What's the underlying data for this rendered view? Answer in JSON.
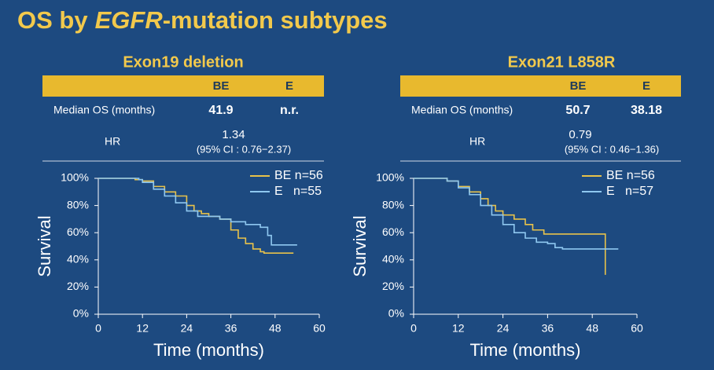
{
  "title": [
    "OS by",
    "EGFR",
    "-mutation subtypes"
  ],
  "chart_data": [
    {
      "type": "line",
      "title": "Exon19 deletion",
      "table": {
        "columns": [
          "BE",
          "E"
        ],
        "median_label": "Median OS (months)",
        "median": [
          41.9,
          "n.r."
        ],
        "hr_label": "HR",
        "hr": 1.34,
        "hr_ci": "(95% CI : 0.76−2.37)"
      },
      "xlabel": "Time (months)",
      "ylabel": "Survival",
      "xlim": [
        0,
        60
      ],
      "xticks": [
        0,
        12,
        24,
        36,
        48,
        60
      ],
      "ylim": [
        0,
        100
      ],
      "yticks": [
        {
          "value": 0,
          "label": "0%"
        },
        {
          "value": 20,
          "label": "20%"
        },
        {
          "value": 40,
          "label": "40%"
        },
        {
          "value": 60,
          "label": "60%"
        },
        {
          "value": 80,
          "label": "80%"
        },
        {
          "value": 100,
          "label": "100%"
        }
      ],
      "series": [
        {
          "name": "BE n=56",
          "color": "#e8c24a",
          "x": [
            0,
            10,
            12,
            15,
            18,
            21,
            24,
            26,
            28,
            30,
            33,
            36,
            38,
            40,
            42,
            44,
            45,
            53
          ],
          "values": [
            100,
            99,
            98,
            94,
            90,
            87,
            80,
            76,
            74,
            72,
            70,
            62,
            56,
            52,
            48,
            46,
            45,
            45
          ]
        },
        {
          "name": "E   n=55",
          "color": "#8fc8f0",
          "x": [
            0,
            11,
            12,
            15,
            18,
            21,
            24,
            27,
            33,
            36,
            40,
            44,
            46,
            47,
            54
          ],
          "values": [
            100,
            99,
            97,
            92,
            87,
            82,
            76,
            72,
            70,
            68,
            66,
            64,
            58,
            51,
            51
          ]
        }
      ]
    },
    {
      "type": "line",
      "title": "Exon21 L858R",
      "table": {
        "columns": [
          "BE",
          "E"
        ],
        "median_label": "Median OS (months)",
        "median": [
          50.7,
          38.18
        ],
        "hr_label": "HR",
        "hr": 0.79,
        "hr_ci": "(95% CI : 0.46−1.36)"
      },
      "xlabel": "Time (months)",
      "ylabel": "Survival",
      "xlim": [
        0,
        60
      ],
      "xticks": [
        0,
        12,
        24,
        36,
        48,
        60
      ],
      "ylim": [
        0,
        100
      ],
      "yticks": [
        {
          "value": 0,
          "label": "0%"
        },
        {
          "value": 20,
          "label": "20%"
        },
        {
          "value": 40,
          "label": "40%"
        },
        {
          "value": 60,
          "label": "60%"
        },
        {
          "value": 80,
          "label": "80%"
        },
        {
          "value": 100,
          "label": "100%"
        }
      ],
      "series": [
        {
          "name": "BE n=56",
          "color": "#e8c24a",
          "x": [
            0,
            9,
            12,
            15,
            18,
            20,
            22,
            24,
            27,
            30,
            32,
            35,
            51,
            51.5
          ],
          "values": [
            100,
            98,
            94,
            90,
            85,
            80,
            76,
            73,
            70,
            66,
            62,
            59,
            59,
            29
          ]
        },
        {
          "name": "E   n=57",
          "color": "#8fc8f0",
          "x": [
            0,
            9,
            12,
            15,
            18,
            21,
            24,
            27,
            30,
            33,
            36,
            38,
            40,
            55
          ],
          "values": [
            100,
            98,
            93,
            88,
            80,
            73,
            66,
            60,
            56,
            53,
            52,
            49,
            48,
            48
          ]
        }
      ]
    }
  ]
}
